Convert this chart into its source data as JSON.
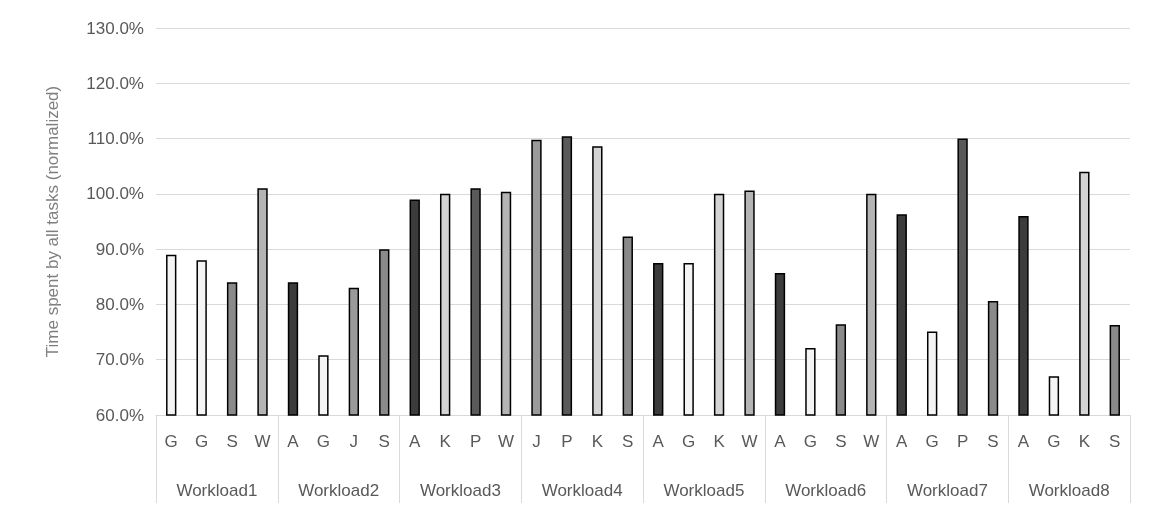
{
  "chart_data": {
    "type": "bar",
    "ylabel": "Time spent by all tasks (normalized)",
    "categories": [
      "G",
      "G",
      "S",
      "W",
      "A",
      "G",
      "J",
      "S",
      "A",
      "K",
      "P",
      "W",
      "J",
      "P",
      "K",
      "S",
      "A",
      "G",
      "K",
      "W",
      "A",
      "G",
      "S",
      "W",
      "A",
      "G",
      "P",
      "S",
      "A",
      "G",
      "K",
      "S"
    ],
    "annotations": [
      "Workload1",
      "Workload2",
      "Workload3",
      "Workload4",
      "Workload5",
      "Workload6",
      "Workload7",
      "Workload8"
    ],
    "values": [
      89,
      88,
      84,
      101,
      84,
      70.8,
      83,
      90,
      99,
      100,
      101,
      100.4,
      109.8,
      110.4,
      108.6,
      92.3,
      87.5,
      87.5,
      100,
      100.6,
      85.7,
      72.1,
      76.4,
      100,
      96.3,
      75.1,
      110,
      80.6,
      96,
      67,
      104,
      76.3
    ],
    "colors": [
      "#f4f4f4",
      "#f4f4f4",
      "#8a8a8a",
      "#b4b4b4",
      "#3c3c3c",
      "#f4f4f4",
      "#9a9a9a",
      "#8a8a8a",
      "#3c3c3c",
      "#d4d4d4",
      "#5a5a5a",
      "#b4b4b4",
      "#9a9a9a",
      "#5a5a5a",
      "#d4d4d4",
      "#8a8a8a",
      "#3c3c3c",
      "#f4f4f4",
      "#d4d4d4",
      "#b4b4b4",
      "#3c3c3c",
      "#f4f4f4",
      "#8a8a8a",
      "#b4b4b4",
      "#3c3c3c",
      "#f4f4f4",
      "#5a5a5a",
      "#8a8a8a",
      "#3c3c3c",
      "#f4f4f4",
      "#d4d4d4",
      "#8a8a8a"
    ],
    "ylim": [
      60,
      130
    ],
    "yticks": [
      {
        "value": 60,
        "label": "60.0%"
      },
      {
        "value": 70,
        "label": "70.0%"
      },
      {
        "value": 80,
        "label": "80.0%"
      },
      {
        "value": 90,
        "label": "90.0%"
      },
      {
        "value": 100,
        "label": "100.0%"
      },
      {
        "value": 110,
        "label": "110.0%"
      },
      {
        "value": 120,
        "label": "120.0%"
      },
      {
        "value": 130,
        "label": "130.0%"
      }
    ],
    "grid": "y"
  }
}
